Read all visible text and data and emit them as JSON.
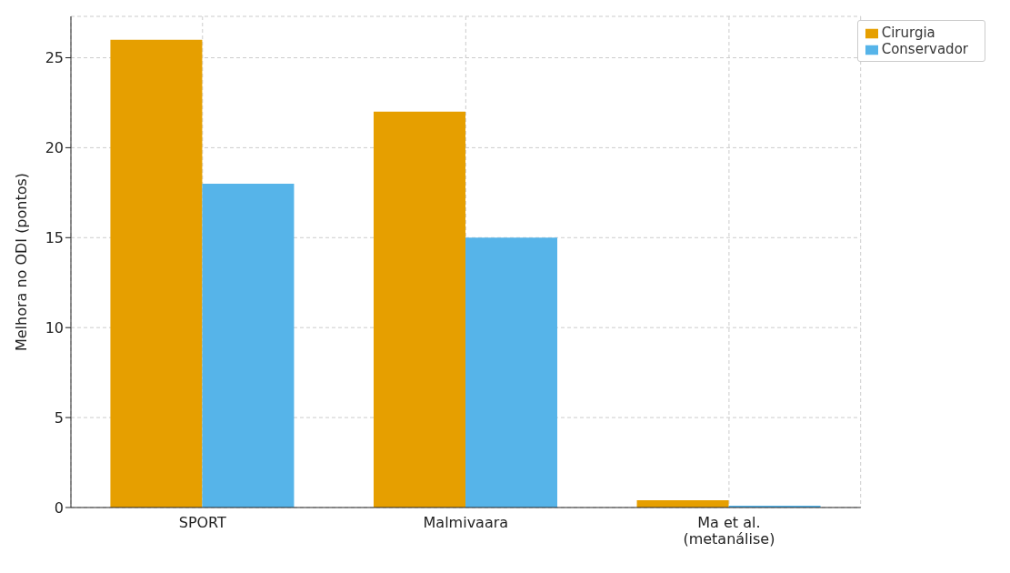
{
  "chart_data": {
    "type": "bar",
    "ylabel": "Melhora no ODI (pontos)",
    "categories": [
      "SPORT",
      "Malmivaara",
      "Ma et al.\n(metanálise)"
    ],
    "series": [
      {
        "name": "Cirurgia",
        "color": "#e69f00",
        "values": [
          26,
          22,
          0.4
        ]
      },
      {
        "name": "Conservador",
        "color": "#56b4e9",
        "values": [
          18,
          15,
          0.1
        ]
      }
    ],
    "ylim": [
      0,
      27.3
    ],
    "yticks": [
      0,
      5,
      10,
      15,
      20,
      25
    ],
    "grid": true,
    "legend": "top right"
  }
}
